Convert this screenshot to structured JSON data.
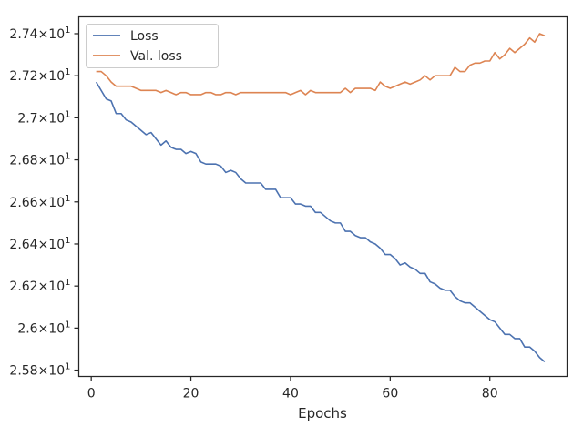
{
  "chart_data": {
    "type": "line",
    "xlabel": "Epochs",
    "ylabel": "",
    "xlim": [
      -2.5,
      95.5
    ],
    "ylim": [
      25.77,
      27.48
    ],
    "x_ticks": [
      {
        "value": 0,
        "label": "0"
      },
      {
        "value": 20,
        "label": "20"
      },
      {
        "value": 40,
        "label": "40"
      },
      {
        "value": 60,
        "label": "60"
      },
      {
        "value": 80,
        "label": "80"
      }
    ],
    "y_ticks": [
      {
        "value": 25.8,
        "mantissa": "2.58",
        "exp": "1"
      },
      {
        "value": 26.0,
        "mantissa": "2.6",
        "exp": "1"
      },
      {
        "value": 26.2,
        "mantissa": "2.62",
        "exp": "1"
      },
      {
        "value": 26.4,
        "mantissa": "2.64",
        "exp": "1"
      },
      {
        "value": 26.6,
        "mantissa": "2.66",
        "exp": "1"
      },
      {
        "value": 26.8,
        "mantissa": "2.68",
        "exp": "1"
      },
      {
        "value": 27.0,
        "mantissa": "2.7",
        "exp": "1"
      },
      {
        "value": 27.2,
        "mantissa": "2.72",
        "exp": "1"
      },
      {
        "value": 27.4,
        "mantissa": "2.74",
        "exp": "1"
      }
    ],
    "grid": false,
    "legend_position": "top-left",
    "x": [
      1,
      2,
      3,
      4,
      5,
      6,
      7,
      8,
      9,
      10,
      11,
      12,
      13,
      14,
      15,
      16,
      17,
      18,
      19,
      20,
      21,
      22,
      23,
      24,
      25,
      26,
      27,
      28,
      29,
      30,
      31,
      32,
      33,
      34,
      35,
      36,
      37,
      38,
      39,
      40,
      41,
      42,
      43,
      44,
      45,
      46,
      47,
      48,
      49,
      50,
      51,
      52,
      53,
      54,
      55,
      56,
      57,
      58,
      59,
      60,
      61,
      62,
      63,
      64,
      65,
      66,
      67,
      68,
      69,
      70,
      71,
      72,
      73,
      74,
      75,
      76,
      77,
      78,
      79,
      80,
      81,
      82,
      83,
      84,
      85,
      86,
      87,
      88,
      89,
      90,
      91
    ],
    "series": [
      {
        "name": "Loss",
        "color": "#4c72b0",
        "values": [
          27.17,
          27.13,
          27.09,
          27.08,
          27.02,
          27.02,
          26.99,
          26.98,
          26.96,
          26.94,
          26.92,
          26.93,
          26.9,
          26.87,
          26.89,
          26.86,
          26.85,
          26.85,
          26.83,
          26.84,
          26.83,
          26.79,
          26.78,
          26.78,
          26.78,
          26.77,
          26.74,
          26.75,
          26.74,
          26.71,
          26.69,
          26.69,
          26.69,
          26.69,
          26.66,
          26.66,
          26.66,
          26.62,
          26.62,
          26.62,
          26.59,
          26.59,
          26.58,
          26.58,
          26.55,
          26.55,
          26.53,
          26.51,
          26.5,
          26.5,
          26.46,
          26.46,
          26.44,
          26.43,
          26.43,
          26.41,
          26.4,
          26.38,
          26.35,
          26.35,
          26.33,
          26.3,
          26.31,
          26.29,
          26.28,
          26.26,
          26.26,
          26.22,
          26.21,
          26.19,
          26.18,
          26.18,
          26.15,
          26.13,
          26.12,
          26.12,
          26.1,
          26.08,
          26.06,
          26.04,
          26.03,
          26.0,
          25.97,
          25.97,
          25.95,
          25.95,
          25.91,
          25.91,
          25.89,
          25.86,
          25.84
        ]
      },
      {
        "name": "Val. loss",
        "color": "#dd8452",
        "values": [
          27.22,
          27.22,
          27.2,
          27.17,
          27.15,
          27.15,
          27.15,
          27.15,
          27.14,
          27.13,
          27.13,
          27.13,
          27.13,
          27.12,
          27.13,
          27.12,
          27.11,
          27.12,
          27.12,
          27.11,
          27.11,
          27.11,
          27.12,
          27.12,
          27.11,
          27.11,
          27.12,
          27.12,
          27.11,
          27.12,
          27.12,
          27.12,
          27.12,
          27.12,
          27.12,
          27.12,
          27.12,
          27.12,
          27.12,
          27.11,
          27.12,
          27.13,
          27.11,
          27.13,
          27.12,
          27.12,
          27.12,
          27.12,
          27.12,
          27.12,
          27.14,
          27.12,
          27.14,
          27.14,
          27.14,
          27.14,
          27.13,
          27.17,
          27.15,
          27.14,
          27.15,
          27.16,
          27.17,
          27.16,
          27.17,
          27.18,
          27.2,
          27.18,
          27.2,
          27.2,
          27.2,
          27.2,
          27.24,
          27.22,
          27.22,
          27.25,
          27.26,
          27.26,
          27.27,
          27.27,
          27.31,
          27.28,
          27.3,
          27.33,
          27.31,
          27.33,
          27.35,
          27.38,
          27.36,
          27.4,
          27.39
        ]
      }
    ]
  }
}
